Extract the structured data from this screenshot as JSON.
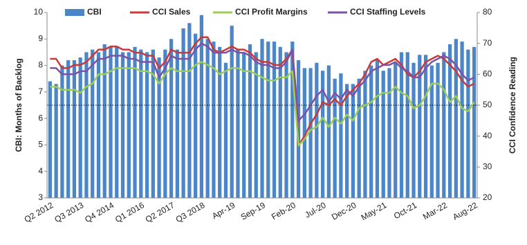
{
  "chart_data": {
    "type": "bar-line",
    "y_label": "CBI: Months of Backlog",
    "y2_label": "CCI Confidence Reading",
    "categories": [
      "Q2 2012",
      null,
      null,
      null,
      null,
      "Q3 2013",
      null,
      null,
      null,
      null,
      "Q4 2014",
      null,
      null,
      null,
      null,
      "Q1 2016",
      null,
      null,
      null,
      null,
      "Q2 2017",
      null,
      null,
      null,
      null,
      "Q3 2018",
      null,
      null,
      null,
      null,
      "Apr-19",
      null,
      null,
      null,
      null,
      "Sep-19",
      null,
      null,
      null,
      null,
      "Feb-20",
      null,
      null,
      null,
      null,
      "Jul-20",
      null,
      null,
      null,
      null,
      "Dec-20",
      null,
      null,
      null,
      null,
      "May-21",
      null,
      null,
      null,
      null,
      "Oct-21",
      null,
      null,
      null,
      null,
      "Mar-22",
      null,
      null,
      null,
      null,
      "Aug-22"
    ],
    "ylim": [
      3,
      10
    ],
    "yticks": [
      3,
      4,
      5,
      6,
      7,
      8,
      9,
      10
    ],
    "y2lim": [
      20,
      80
    ],
    "y2ticks": [
      20,
      30,
      40,
      50,
      60,
      70,
      80
    ],
    "reference_y2": 50,
    "series": [
      {
        "name": "CBI",
        "color": "#4a86c8",
        "kind": "bar",
        "values": [
          7.4,
          7.3,
          8.0,
          8.2,
          8.2,
          8.3,
          8.5,
          8.6,
          8.5,
          8.8,
          8.7,
          8.7,
          8.5,
          8.5,
          8.7,
          8.6,
          8.5,
          8.6,
          8.3,
          8.6,
          9.0,
          8.6,
          9.4,
          9.6,
          9.2,
          9.9,
          9.0,
          8.9,
          8.7,
          8.1,
          9.5,
          8.6,
          8.5,
          8.8,
          8.5,
          9.0,
          8.9,
          8.9,
          8.7,
          8.5,
          8.9,
          8.2,
          7.9,
          7.9,
          8.1,
          7.8,
          8.0,
          7.5,
          7.7,
          7.3,
          7.3,
          7.5,
          7.8,
          8.0,
          8.2,
          7.8,
          7.9,
          8.1,
          8.5,
          8.5,
          8.1,
          8.4,
          8.4,
          8.0,
          8.1,
          8.5,
          8.8,
          9.0,
          8.9,
          8.6,
          8.7
        ]
      },
      {
        "name": "CCI Sales",
        "color": "#c8393a",
        "kind": "line",
        "axis": "y2",
        "values": [
          65,
          65,
          62,
          62,
          63,
          63,
          64,
          66,
          68,
          68,
          69,
          69,
          68,
          68,
          67,
          67,
          66,
          66,
          62,
          64,
          68,
          67,
          67,
          67,
          70,
          72,
          72,
          68,
          67,
          68,
          69,
          68,
          68,
          67,
          65,
          64,
          64,
          63,
          63,
          65,
          68,
          37,
          40,
          44,
          47,
          51,
          50,
          52,
          50,
          53,
          55,
          57,
          60,
          64,
          65,
          63,
          64,
          65,
          63,
          60,
          59,
          61,
          64,
          65,
          66,
          65,
          63,
          61,
          58,
          56,
          57
        ]
      },
      {
        "name": "CCI Profit Margins",
        "color": "#9ccc5a",
        "kind": "line",
        "axis": "y2",
        "values": [
          56,
          56,
          55,
          55,
          55,
          54,
          56,
          57,
          60,
          60,
          61,
          62,
          62,
          62,
          62,
          61,
          61,
          60,
          57,
          60,
          62,
          61,
          61,
          61,
          63,
          64,
          63,
          62,
          60,
          61,
          62,
          62,
          61,
          61,
          60,
          59,
          58,
          58,
          59,
          59,
          61,
          37,
          39,
          42,
          43,
          46,
          43,
          46,
          44,
          47,
          45,
          49,
          50,
          51,
          53,
          54,
          54,
          56,
          54,
          53,
          49,
          50,
          53,
          57,
          57,
          55,
          51,
          53,
          49,
          48,
          51
        ]
      },
      {
        "name": "CCI Staffing Levels",
        "color": "#7b52a6",
        "kind": "line",
        "axis": "y2",
        "values": [
          62,
          62,
          60,
          60,
          60,
          61,
          61,
          63,
          65,
          65,
          66,
          66,
          66,
          65,
          65,
          64,
          64,
          64,
          59,
          62,
          66,
          65,
          65,
          65,
          68,
          70,
          69,
          67,
          67,
          67,
          68,
          67,
          67,
          66,
          64,
          63,
          63,
          62,
          62,
          64,
          68,
          45,
          47,
          50,
          53,
          55,
          51,
          54,
          52,
          55,
          53,
          56,
          58,
          61,
          62,
          63,
          63,
          64,
          62,
          61,
          59,
          59,
          62,
          64,
          65,
          66,
          65,
          63,
          60,
          58,
          59
        ]
      }
    ]
  }
}
